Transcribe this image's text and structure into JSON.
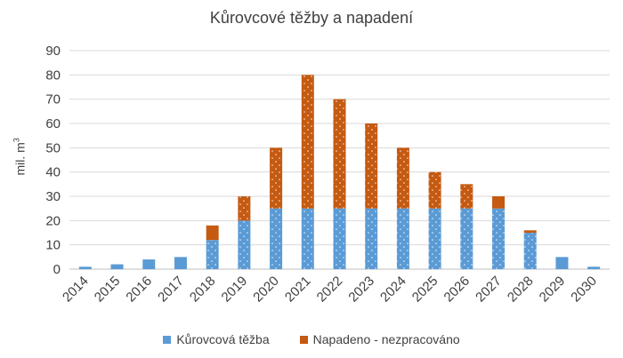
{
  "chart_data": {
    "type": "bar",
    "stacked": true,
    "title": "Kůrovcové těžby a napadení",
    "ylabel": "mil. m",
    "ylabel_sup": "3",
    "ylim": [
      0,
      90
    ],
    "yticks": [
      0,
      10,
      20,
      30,
      40,
      50,
      60,
      70,
      80,
      90
    ],
    "grid": true,
    "legend_position": "bottom",
    "categories": [
      "2014",
      "2015",
      "2016",
      "2017",
      "2018",
      "2019",
      "2020",
      "2021",
      "2022",
      "2023",
      "2024",
      "2025",
      "2026",
      "2027",
      "2028",
      "2029",
      "2030"
    ],
    "series": [
      {
        "name": "Kůrovcová těžba",
        "color": "#5b9bd5",
        "values": [
          1,
          2,
          4,
          5,
          12,
          20,
          25,
          25,
          25,
          25,
          25,
          25,
          25,
          25,
          15,
          5,
          1
        ]
      },
      {
        "name": "Napadeno - nezpracováno",
        "color": "#c55a11",
        "values": [
          0,
          0,
          0,
          0,
          6,
          10,
          25,
          55,
          45,
          35,
          25,
          15,
          10,
          5,
          1,
          0,
          0
        ]
      }
    ]
  }
}
